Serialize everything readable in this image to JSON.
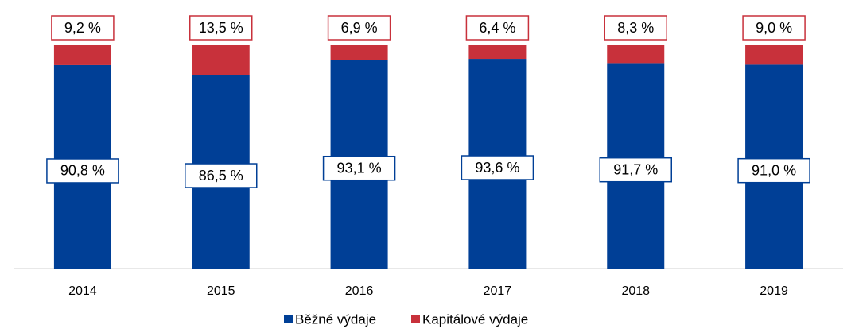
{
  "chart_data": {
    "type": "stacked_bar",
    "categories": [
      "2014",
      "2015",
      "2016",
      "2017",
      "2018",
      "2019"
    ],
    "series": [
      {
        "name": "Běžné výdaje",
        "color": "#003f96",
        "values": [
          90.8,
          86.5,
          93.1,
          93.6,
          91.7,
          91.0
        ],
        "value_labels": [
          "90,8 %",
          "86,5 %",
          "93,1 %",
          "93,6 %",
          "91,7 %",
          "91,0 %"
        ]
      },
      {
        "name": "Kapitálové výdaje",
        "color": "#c8313b",
        "values": [
          9.2,
          13.5,
          6.9,
          6.4,
          8.3,
          9.0
        ],
        "value_labels": [
          "9,2 %",
          "13,5 %",
          "6,9 %",
          "6,4 %",
          "8,3 %",
          "9,0 %"
        ]
      }
    ],
    "ylim": [
      0,
      100
    ]
  }
}
